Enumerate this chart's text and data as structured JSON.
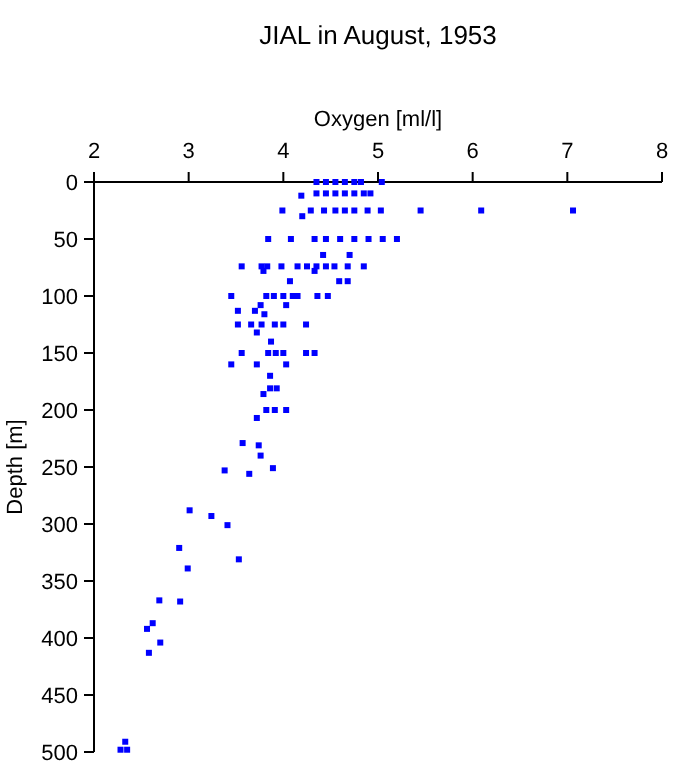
{
  "chart_data": {
    "type": "scatter",
    "title": "JIAL in August, 1953",
    "xlabel": "Oxygen [ml/l]",
    "ylabel": "Depth [m]",
    "xlim": [
      2,
      8
    ],
    "xticks": [
      2,
      3,
      4,
      5,
      6,
      7,
      8
    ],
    "ylim": [
      500,
      0
    ],
    "yticks": [
      0,
      50,
      100,
      150,
      200,
      250,
      300,
      350,
      400,
      450,
      500
    ],
    "marker": "square",
    "grid": false,
    "series": [
      {
        "color": "#0000ff",
        "x": [
          4.35,
          4.45,
          4.55,
          4.65,
          4.75,
          4.82,
          5.04,
          4.35,
          4.45,
          4.55,
          4.65,
          4.75,
          4.85,
          4.92,
          4.19,
          3.99,
          4.29,
          4.43,
          4.55,
          4.65,
          4.75,
          4.89,
          5.03,
          5.45,
          6.09,
          7.06,
          4.2,
          3.84,
          4.08,
          4.33,
          4.45,
          4.6,
          4.75,
          4.9,
          5.05,
          5.2,
          4.42,
          4.7,
          3.56,
          3.77,
          3.83,
          3.98,
          4.15,
          4.25,
          4.35,
          4.45,
          4.54,
          4.68,
          4.85,
          3.79,
          4.33,
          4.59,
          4.07,
          4.68,
          3.45,
          3.82,
          3.9,
          4.0,
          4.1,
          4.15,
          4.36,
          4.47,
          3.76,
          4.03,
          3.52,
          3.7,
          3.8,
          3.52,
          3.66,
          3.77,
          3.91,
          4.0,
          4.24,
          3.72,
          3.87,
          3.56,
          3.84,
          3.92,
          4.0,
          4.24,
          4.33,
          3.45,
          3.72,
          4.03,
          3.86,
          3.86,
          3.93,
          3.79,
          3.82,
          3.91,
          4.03,
          3.72,
          3.57,
          3.74,
          3.76,
          3.38,
          3.89,
          3.64,
          3.01,
          3.24,
          3.41,
          2.9,
          3.53,
          2.99,
          2.91,
          2.69,
          2.62,
          2.56,
          2.7,
          2.58,
          2.33,
          2.28,
          2.35
        ],
        "values": [
          0,
          0,
          0,
          0,
          0,
          0,
          0,
          10,
          10,
          10,
          10,
          10,
          10,
          10,
          12,
          25,
          25,
          25,
          25,
          25,
          25,
          25,
          25,
          25,
          25,
          25,
          30,
          50,
          50,
          50,
          50,
          50,
          50,
          50,
          50,
          50,
          64,
          64,
          74,
          74,
          74,
          74,
          74,
          74,
          74,
          74,
          74,
          74,
          74,
          78,
          78,
          87,
          87,
          87,
          100,
          100,
          100,
          100,
          100,
          100,
          100,
          100,
          108,
          108,
          113,
          113,
          116,
          125,
          125,
          125,
          125,
          125,
          125,
          132,
          140,
          150,
          150,
          150,
          150,
          150,
          150,
          160,
          160,
          160,
          170,
          181,
          181,
          186,
          200,
          200,
          200,
          207,
          229,
          231,
          240,
          253,
          251,
          256,
          288,
          293,
          301,
          321,
          331,
          339,
          368,
          367,
          387,
          392,
          404,
          413,
          491,
          498,
          498
        ]
      }
    ]
  }
}
